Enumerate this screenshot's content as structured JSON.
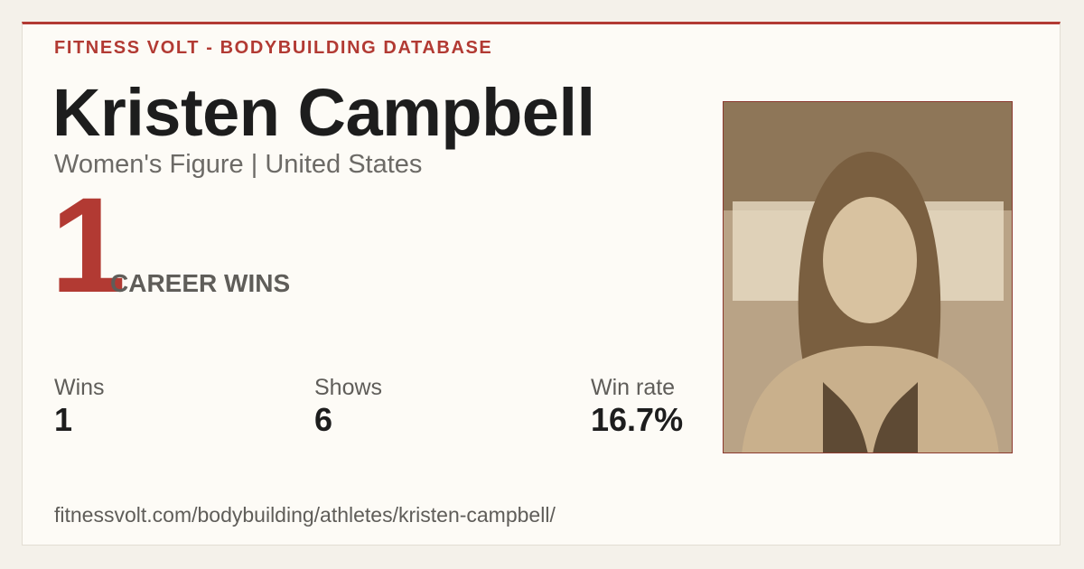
{
  "header": {
    "brand": "FITNESS VOLT - BODYBUILDING DATABASE"
  },
  "athlete": {
    "name": "Kristen Campbell",
    "subtitle": "Women's Figure | United States"
  },
  "hero": {
    "value": "1",
    "label": "CAREER WINS"
  },
  "stats": [
    {
      "label": "Wins",
      "value": "1"
    },
    {
      "label": "Shows",
      "value": "6"
    },
    {
      "label": "Win rate",
      "value": "16.7%"
    }
  ],
  "footer": {
    "url": "fitnessvolt.com/bodybuilding/athletes/kristen-campbell/"
  }
}
